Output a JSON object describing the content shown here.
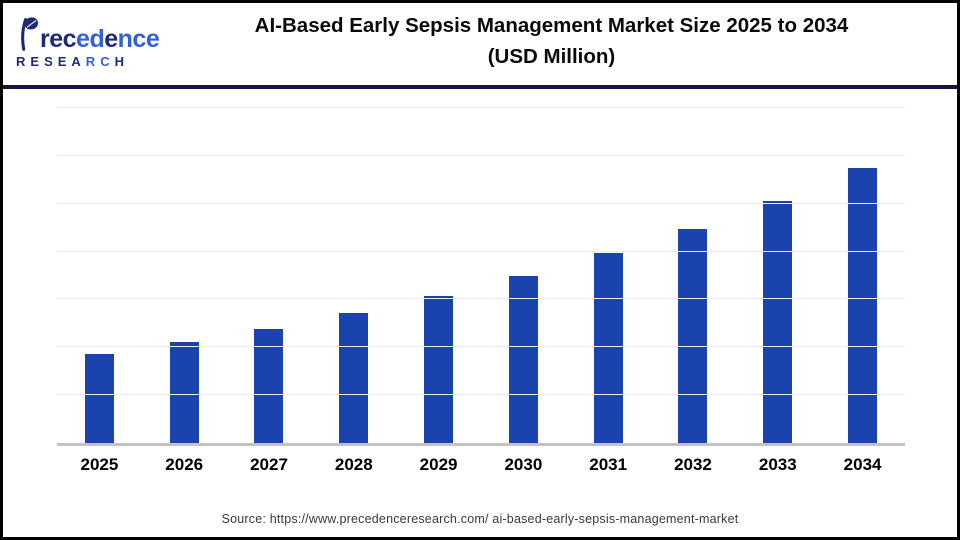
{
  "header": {
    "logo": {
      "name": "Precedence",
      "sub": "RESEARCH",
      "colors": {
        "navy": "#1e2a74",
        "blue": "#2f62d8"
      }
    },
    "title_line1": "AI-Based Early Sepsis Management Market Size 2025 to 2034",
    "title_line2": "(USD Million)"
  },
  "chart_data": {
    "type": "bar",
    "title": "AI-Based Early Sepsis Management Market Size 2025 to 2034 (USD Million)",
    "categories": [
      "2025",
      "2026",
      "2027",
      "2028",
      "2029",
      "2030",
      "2031",
      "2032",
      "2033",
      "2034"
    ],
    "values": [
      1.86,
      2.1,
      2.39,
      2.72,
      3.07,
      3.49,
      3.96,
      4.47,
      5.06,
      5.74
    ],
    "value_unit": "relative gridline units (y-axis unlabeled in source image)",
    "ylim": [
      0,
      7
    ],
    "gridlines": 7,
    "grid": "horizontal only",
    "legend_position": "none",
    "xlabel": "",
    "ylabel": "",
    "bar_color": "#1b43ae",
    "gridline_color": "#ececec",
    "baseline_color": "#c2c2c2"
  },
  "footer": {
    "source": "Source: https://www.precedenceresearch.com/ ai-based-early-sepsis-management-market"
  }
}
